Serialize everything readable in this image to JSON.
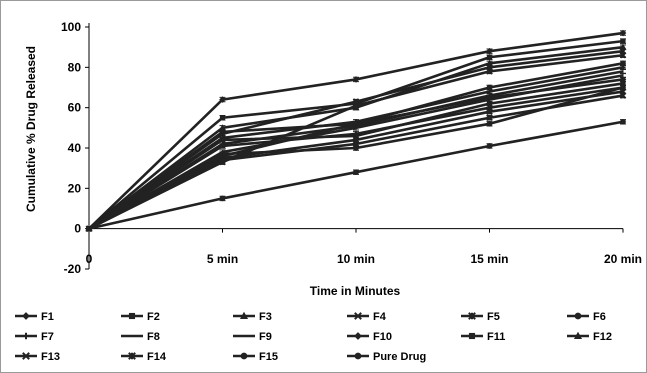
{
  "chart_data": {
    "type": "line",
    "title": "",
    "xlabel": "Time in Minutes",
    "ylabel": "Cumulative % Drug Released",
    "x": [
      0,
      5,
      10,
      15,
      20
    ],
    "x_tick_labels": [
      "0",
      "5 min",
      "10 min",
      "15 min",
      "20 min"
    ],
    "y_ticks": [
      -20,
      0,
      20,
      40,
      60,
      80,
      100
    ],
    "ylim": [
      -20,
      100
    ],
    "grid": false,
    "legend_position": "bottom",
    "line_color": "#222222",
    "series": [
      {
        "name": "F1",
        "marker": "diamond",
        "values": [
          0,
          64,
          74,
          88,
          97
        ]
      },
      {
        "name": "F2",
        "marker": "square",
        "values": [
          0,
          55,
          62,
          85,
          93
        ]
      },
      {
        "name": "F3",
        "marker": "triangle",
        "values": [
          0,
          50,
          60,
          82,
          90
        ]
      },
      {
        "name": "F4",
        "marker": "x",
        "values": [
          0,
          47,
          63,
          80,
          88
        ]
      },
      {
        "name": "F5",
        "marker": "star",
        "values": [
          0,
          33,
          61,
          78,
          86
        ]
      },
      {
        "name": "F6",
        "marker": "circle",
        "values": [
          0,
          36,
          52,
          70,
          82
        ]
      },
      {
        "name": "F7",
        "marker": "plus",
        "values": [
          0,
          45,
          53,
          68,
          80
        ]
      },
      {
        "name": "F8",
        "marker": "dash",
        "values": [
          0,
          42,
          51,
          66,
          78
        ]
      },
      {
        "name": "F9",
        "marker": "dash",
        "values": [
          0,
          38,
          50,
          64,
          76
        ]
      },
      {
        "name": "F10",
        "marker": "diamond",
        "values": [
          0,
          48,
          52,
          65,
          74
        ]
      },
      {
        "name": "F11",
        "marker": "square",
        "values": [
          0,
          44,
          46,
          62,
          72
        ]
      },
      {
        "name": "F12",
        "marker": "triangle",
        "values": [
          0,
          41,
          47,
          60,
          70
        ]
      },
      {
        "name": "F13",
        "marker": "x",
        "values": [
          0,
          35,
          44,
          58,
          68
        ]
      },
      {
        "name": "F14",
        "marker": "star",
        "values": [
          0,
          34,
          42,
          55,
          66
        ]
      },
      {
        "name": "F15",
        "marker": "circle",
        "values": [
          0,
          37,
          40,
          52,
          70
        ]
      },
      {
        "name": "Pure Drug",
        "marker": "circle",
        "values": [
          0,
          15,
          28,
          41,
          53
        ]
      }
    ]
  }
}
